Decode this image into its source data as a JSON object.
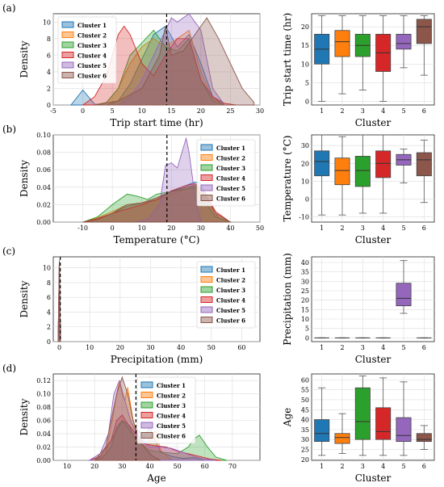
{
  "figure": {
    "series_colors": [
      "#1f77b4",
      "#ff7f0e",
      "#2ca02c",
      "#d62728",
      "#9467bd",
      "#8c564b"
    ],
    "legend_labels": [
      "Cluster 1",
      "Cluster 2",
      "Cluster 3",
      "Cluster 4",
      "Cluster 5",
      "Cluster 6"
    ]
  },
  "chart_data": [
    {
      "panel": "(a)",
      "type": "area",
      "xlabel": "Trip start time (hr)",
      "ylabel": "Density",
      "ylabel_suffix": "",
      "xlim": [
        -5,
        30
      ],
      "ylim": [
        0,
        11
      ],
      "xticks": [
        -5,
        0,
        5,
        10,
        15,
        20,
        25,
        30
      ],
      "yticks": [
        0,
        2,
        4,
        6,
        8,
        10
      ],
      "vline": 14.2,
      "legend": "top-left",
      "series": [
        {
          "name": "Cluster 1",
          "x": [
            -2,
            0,
            2,
            4,
            6,
            8,
            10,
            12,
            14,
            16,
            18,
            20,
            22,
            24
          ],
          "y": [
            0,
            1.8,
            0.1,
            0,
            0.5,
            2.5,
            5.5,
            8.5,
            9.5,
            7,
            8.5,
            5,
            1,
            0
          ]
        },
        {
          "name": "Cluster 2",
          "x": [
            2,
            4,
            6,
            8,
            10,
            12,
            14,
            16,
            18,
            20,
            22,
            24
          ],
          "y": [
            0,
            0.3,
            2,
            5,
            7,
            8,
            7,
            8,
            9,
            4,
            0.8,
            0
          ]
        },
        {
          "name": "Cluster 3",
          "x": [
            2,
            4,
            6,
            8,
            10,
            12,
            14,
            16,
            18,
            20,
            22,
            24
          ],
          "y": [
            0,
            0.3,
            2,
            6,
            7.5,
            9,
            7,
            6.5,
            8,
            3,
            0.5,
            0
          ]
        },
        {
          "name": "Cluster 4",
          "x": [
            0,
            2,
            4,
            6,
            7,
            8,
            10,
            12,
            14,
            16,
            18,
            20,
            22,
            24,
            26
          ],
          "y": [
            0,
            1,
            3.5,
            8.5,
            9.5,
            8.5,
            5,
            3.5,
            6,
            8,
            8,
            3,
            1,
            0.2,
            0
          ]
        },
        {
          "name": "Cluster 5",
          "x": [
            6,
            8,
            10,
            12,
            14,
            15,
            16,
            18,
            20,
            22,
            24
          ],
          "y": [
            0,
            1,
            3,
            6,
            9,
            10.5,
            10,
            11,
            9,
            2,
            0
          ]
        },
        {
          "name": "Cluster 6",
          "x": [
            2,
            6,
            10,
            13,
            14,
            15,
            17,
            19,
            21,
            23,
            25,
            27,
            29
          ],
          "y": [
            0,
            0.5,
            2,
            6,
            9.5,
            6,
            6.5,
            8.5,
            10.5,
            8,
            5,
            2,
            0.3
          ]
        }
      ]
    },
    {
      "panel": "(a)",
      "type": "box",
      "xlabel": "Cluster",
      "ylabel": "Trip start time (hr)",
      "ylabel_suffix": "",
      "ylim": [
        -1,
        23.5
      ],
      "yticks": [
        0,
        5,
        10,
        15,
        20
      ],
      "categories": [
        "1",
        "2",
        "3",
        "4",
        "5",
        "6"
      ],
      "boxes": [
        {
          "min": 0,
          "q1": 10,
          "median": 14,
          "q3": 18,
          "max": 23
        },
        {
          "min": 2,
          "q1": 12,
          "median": 16,
          "q3": 19,
          "max": 23
        },
        {
          "min": 3,
          "q1": 12,
          "median": 15,
          "q3": 18,
          "max": 23
        },
        {
          "min": 0,
          "q1": 8,
          "median": 13,
          "q3": 18,
          "max": 23
        },
        {
          "min": 9,
          "q1": 14,
          "median": 15.5,
          "q3": 18,
          "max": 23
        },
        {
          "min": 7,
          "q1": 15.5,
          "median": 20,
          "q3": 22,
          "max": 23
        }
      ]
    },
    {
      "panel": "(b)",
      "type": "area",
      "xlabel": "Temperature (",
      "ylabel": "Density",
      "ylabel_suffix": "",
      "xlim": [
        -20,
        50
      ],
      "ylim": [
        0,
        0.1
      ],
      "xticks": [
        -10,
        0,
        10,
        20,
        30,
        40,
        50
      ],
      "yticks": [
        0.0,
        0.02,
        0.04,
        0.06,
        0.08,
        0.1
      ],
      "vline": 18.5,
      "legend": "right",
      "series": [
        {
          "name": "Cluster 1",
          "x": [
            -10,
            -5,
            0,
            5,
            10,
            15,
            20,
            25,
            28,
            30,
            33,
            36,
            40
          ],
          "y": [
            0,
            0.003,
            0.01,
            0.018,
            0.022,
            0.026,
            0.035,
            0.042,
            0.046,
            0.044,
            0.02,
            0.005,
            0
          ]
        },
        {
          "name": "Cluster 2",
          "x": [
            -10,
            -5,
            0,
            5,
            10,
            15,
            20,
            25,
            28,
            31,
            35,
            40
          ],
          "y": [
            0,
            0.005,
            0.012,
            0.02,
            0.022,
            0.025,
            0.032,
            0.038,
            0.04,
            0.03,
            0.01,
            0
          ]
        },
        {
          "name": "Cluster 3",
          "x": [
            -10,
            -5,
            0,
            5,
            8,
            12,
            15,
            20,
            25,
            28,
            31,
            35,
            40
          ],
          "y": [
            0,
            0.006,
            0.02,
            0.032,
            0.03,
            0.026,
            0.032,
            0.035,
            0.038,
            0.04,
            0.025,
            0.006,
            0
          ]
        },
        {
          "name": "Cluster 4",
          "x": [
            -10,
            -5,
            0,
            5,
            10,
            15,
            20,
            25,
            28,
            31,
            35,
            40
          ],
          "y": [
            0,
            0.004,
            0.01,
            0.015,
            0.02,
            0.026,
            0.036,
            0.042,
            0.044,
            0.036,
            0.012,
            0
          ]
        },
        {
          "name": "Cluster 5",
          "x": [
            8,
            12,
            16,
            18,
            20,
            22,
            24,
            25,
            26,
            28,
            30
          ],
          "y": [
            0,
            0.003,
            0.02,
            0.065,
            0.068,
            0.062,
            0.085,
            0.096,
            0.08,
            0.03,
            0
          ]
        },
        {
          "name": "Cluster 6",
          "x": [
            -10,
            -5,
            0,
            5,
            10,
            15,
            20,
            25,
            28,
            31,
            35,
            40
          ],
          "y": [
            0,
            0.003,
            0.01,
            0.02,
            0.022,
            0.028,
            0.035,
            0.04,
            0.042,
            0.035,
            0.01,
            0
          ]
        }
      ]
    },
    {
      "panel": "(b)",
      "type": "box",
      "xlabel": "Cluster",
      "ylabel": "Temperature (",
      "ylabel_suffix": "",
      "ylim": [
        -13,
        36
      ],
      "yticks": [
        -10,
        0,
        10,
        20,
        30
      ],
      "categories": [
        "1",
        "2",
        "3",
        "4",
        "5",
        "6"
      ],
      "boxes": [
        {
          "min": -9,
          "q1": 13,
          "median": 21,
          "q3": 27,
          "max": 36
        },
        {
          "min": -9,
          "q1": 8,
          "median": 16,
          "q3": 23,
          "max": 35
        },
        {
          "min": -8,
          "q1": 7,
          "median": 16,
          "q3": 24,
          "max": 36
        },
        {
          "min": -8,
          "q1": 12,
          "median": 20,
          "q3": 27,
          "max": 36
        },
        {
          "min": 9,
          "q1": 19,
          "median": 22,
          "q3": 25,
          "max": 28
        },
        {
          "min": -2,
          "q1": 13,
          "median": 22,
          "q3": 26,
          "max": 33
        }
      ]
    },
    {
      "panel": "(c)",
      "type": "area",
      "xlabel": "Precipitation (mm)",
      "ylabel": "Density",
      "ylabel_suffix": "",
      "xlim": [
        -2,
        66
      ],
      "ylim": [
        0,
        11.5
      ],
      "xticks": [
        0,
        10,
        20,
        30,
        40,
        50,
        60
      ],
      "yticks": [
        0,
        2,
        4,
        6,
        8,
        10
      ],
      "vline": 0.3,
      "legend": "right",
      "series": [
        {
          "name": "Cluster 1",
          "x": [
            -0.4,
            0,
            0.4
          ],
          "y": [
            0,
            11,
            0
          ]
        },
        {
          "name": "Cluster 2",
          "x": [
            -0.4,
            0,
            0.4
          ],
          "y": [
            0,
            11,
            0
          ]
        },
        {
          "name": "Cluster 3",
          "x": [
            -0.4,
            0,
            0.4
          ],
          "y": [
            0,
            11,
            0
          ]
        },
        {
          "name": "Cluster 4",
          "x": [
            -0.4,
            0,
            0.4
          ],
          "y": [
            0,
            11,
            0
          ]
        },
        {
          "name": "Cluster 5",
          "x": [
            -0.4,
            0,
            0.4
          ],
          "y": [
            0,
            11,
            0
          ]
        },
        {
          "name": "Cluster 6",
          "x": [
            -0.4,
            0,
            0.4
          ],
          "y": [
            0,
            11,
            0
          ]
        }
      ]
    },
    {
      "panel": "(c)",
      "type": "box",
      "xlabel": "Cluster",
      "ylabel": "Precipitation (mm)",
      "ylabel_suffix": "",
      "ylim": [
        -2,
        43
      ],
      "yticks": [
        0,
        5,
        10,
        15,
        20,
        25,
        30,
        35,
        40
      ],
      "categories": [
        "1",
        "2",
        "3",
        "4",
        "5",
        "6"
      ],
      "boxes": [
        {
          "min": 0,
          "q1": 0,
          "median": 0,
          "q3": 0,
          "max": 0
        },
        {
          "min": 0,
          "q1": 0,
          "median": 0,
          "q3": 0,
          "max": 0
        },
        {
          "min": 0,
          "q1": 0,
          "median": 0,
          "q3": 0,
          "max": 0
        },
        {
          "min": 0,
          "q1": 0,
          "median": 0,
          "q3": 0,
          "max": 0
        },
        {
          "min": 13,
          "q1": 17,
          "median": 21,
          "q3": 29,
          "max": 41
        },
        {
          "min": 0,
          "q1": 0,
          "median": 0,
          "q3": 0,
          "max": 0
        }
      ]
    },
    {
      "panel": "(d)",
      "type": "area",
      "xlabel": "Age",
      "ylabel": "Density",
      "ylabel_suffix": "",
      "xlim": [
        5,
        80
      ],
      "ylim": [
        0,
        0.13
      ],
      "xticks": [
        10,
        20,
        30,
        40,
        50,
        60,
        70
      ],
      "yticks": [
        0.0,
        0.02,
        0.04,
        0.06,
        0.08,
        0.1,
        0.12
      ],
      "vline": 35,
      "legend": "top-right",
      "series": [
        {
          "name": "Cluster 1",
          "x": [
            20,
            23,
            26,
            28,
            30,
            32,
            34,
            36,
            38,
            40,
            42,
            44,
            48,
            52,
            56,
            60
          ],
          "y": [
            0,
            0.004,
            0.02,
            0.05,
            0.06,
            0.055,
            0.04,
            0.045,
            0.035,
            0.05,
            0.03,
            0.012,
            0.006,
            0.003,
            0.004,
            0
          ]
        },
        {
          "name": "Cluster 2",
          "x": [
            20,
            24,
            26,
            28,
            29,
            30,
            31,
            32,
            34,
            36,
            38,
            40,
            42,
            44,
            48
          ],
          "y": [
            0,
            0.01,
            0.05,
            0.1,
            0.12,
            0.1,
            0.09,
            0.11,
            0.06,
            0.03,
            0.02,
            0.03,
            0.045,
            0.015,
            0
          ]
        },
        {
          "name": "Cluster 3",
          "x": [
            18,
            22,
            26,
            28,
            30,
            32,
            35,
            40,
            45,
            50,
            54,
            56,
            58,
            61,
            64,
            68
          ],
          "y": [
            0,
            0.006,
            0.03,
            0.045,
            0.06,
            0.05,
            0.03,
            0.015,
            0.012,
            0.01,
            0.02,
            0.032,
            0.038,
            0.02,
            0.005,
            0
          ]
        },
        {
          "name": "Cluster 4",
          "x": [
            18,
            22,
            26,
            28,
            30,
            32,
            35,
            38,
            42,
            46,
            50,
            54,
            58,
            62,
            66
          ],
          "y": [
            0,
            0.006,
            0.03,
            0.06,
            0.068,
            0.055,
            0.04,
            0.025,
            0.022,
            0.02,
            0.014,
            0.01,
            0.006,
            0.002,
            0
          ]
        },
        {
          "name": "Cluster 5",
          "x": [
            18,
            22,
            25,
            27,
            29,
            31,
            33,
            36,
            40,
            44,
            48,
            52,
            56,
            60,
            64
          ],
          "y": [
            0,
            0.01,
            0.04,
            0.1,
            0.12,
            0.09,
            0.06,
            0.035,
            0.02,
            0.02,
            0.018,
            0.012,
            0.006,
            0.002,
            0
          ]
        },
        {
          "name": "Cluster 6",
          "x": [
            20,
            24,
            26,
            28,
            30,
            32,
            34,
            36,
            38,
            40,
            42,
            44
          ],
          "y": [
            0,
            0.02,
            0.06,
            0.1,
            0.125,
            0.1,
            0.06,
            0.035,
            0.02,
            0.01,
            0.004,
            0
          ]
        }
      ]
    },
    {
      "panel": "(d)",
      "type": "box",
      "xlabel": "Cluster",
      "ylabel": "Age",
      "ylabel_suffix": "",
      "ylim": [
        19.5,
        63
      ],
      "yticks": [
        20,
        25,
        30,
        35,
        40,
        45,
        50,
        55,
        60
      ],
      "categories": [
        "1",
        "2",
        "3",
        "4",
        "5",
        "6"
      ],
      "boxes": [
        {
          "min": 22,
          "q1": 29,
          "median": 33,
          "q3": 40,
          "max": 56
        },
        {
          "min": 23,
          "q1": 28,
          "median": 31,
          "q3": 33,
          "max": 43
        },
        {
          "min": 22,
          "q1": 30,
          "median": 39,
          "q3": 56,
          "max": 62
        },
        {
          "min": 22,
          "q1": 30,
          "median": 34,
          "q3": 46,
          "max": 61
        },
        {
          "min": 22,
          "q1": 29,
          "median": 32,
          "q3": 41,
          "max": 59
        },
        {
          "min": 25,
          "q1": 29,
          "median": 30,
          "q3": 33,
          "max": 37
        }
      ]
    }
  ]
}
